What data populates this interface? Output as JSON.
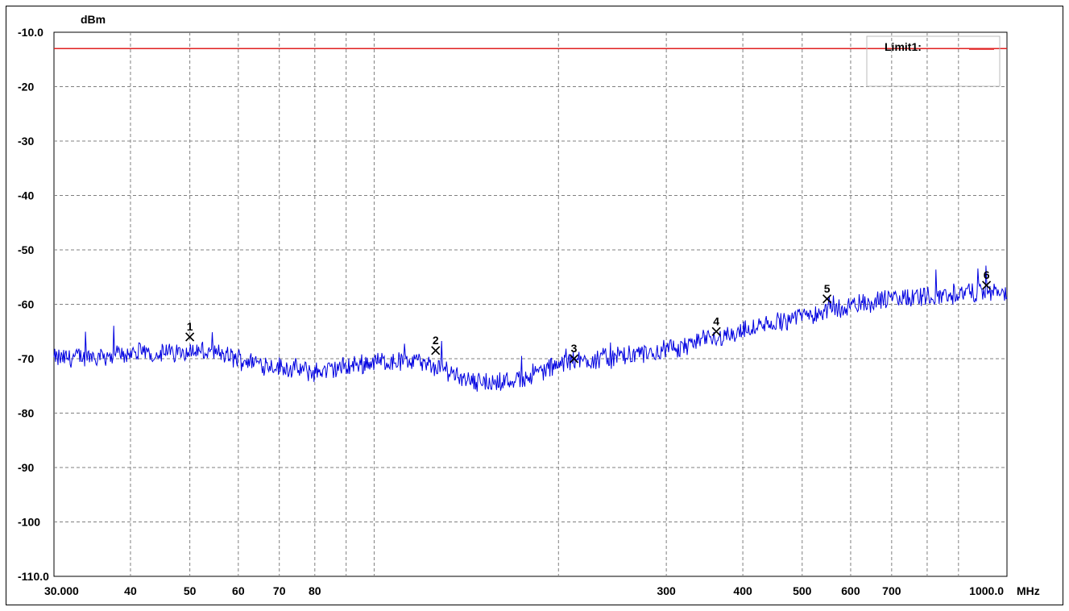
{
  "chart_data": {
    "type": "line",
    "title": "",
    "ylabel": "dBm",
    "xlabel": "MHz",
    "x_scale": "log",
    "xlim": [
      30,
      1000
    ],
    "ylim": [
      -110,
      -10
    ],
    "grid": true,
    "y_tick_labels": [
      "-10.0",
      "-20",
      "-30",
      "-40",
      "-50",
      "-60",
      "-70",
      "-80",
      "-90",
      "-100",
      "-110.0"
    ],
    "y_tick_values": [
      -10,
      -20,
      -30,
      -40,
      -50,
      -60,
      -70,
      -80,
      -90,
      -100,
      -110
    ],
    "x_tick_labels": [
      {
        "value": 30,
        "label": "30.000"
      },
      {
        "value": 40,
        "label": "40"
      },
      {
        "value": 50,
        "label": "50"
      },
      {
        "value": 60,
        "label": "60"
      },
      {
        "value": 70,
        "label": "70"
      },
      {
        "value": 80,
        "label": "80"
      },
      {
        "value": 300,
        "label": "300"
      },
      {
        "value": 400,
        "label": "400"
      },
      {
        "value": 500,
        "label": "500"
      },
      {
        "value": 600,
        "label": "600"
      },
      {
        "value": 700,
        "label": "700"
      },
      {
        "value": 1000,
        "label": "1000.0"
      }
    ],
    "x_grid_values": [
      40,
      50,
      60,
      70,
      80,
      90,
      100,
      200,
      300,
      400,
      500,
      600,
      700,
      800,
      900
    ],
    "limit_line": {
      "name": "Limit1:",
      "value": -13,
      "color": "#e02020"
    },
    "legend": {
      "entries": [
        "Limit1:"
      ],
      "position": "top-right"
    },
    "series": [
      {
        "color": "#0000e0",
        "x": [
          30,
          35,
          40,
          45,
          50,
          55,
          60,
          70,
          80,
          90,
          100,
          115,
          130,
          150,
          170,
          190,
          210,
          230,
          260,
          300,
          350,
          400,
          450,
          500,
          560,
          620,
          700,
          800,
          900,
          1000,
          1080
        ],
        "y": [
          -70,
          -69.5,
          -69,
          -69,
          -68.5,
          -69,
          -70,
          -71.5,
          -72.5,
          -71.5,
          -70.5,
          -70.5,
          -72,
          -74.5,
          -74,
          -72,
          -70.5,
          -70,
          -69.5,
          -68.5,
          -66.5,
          -65,
          -63.5,
          -62,
          -61,
          -60,
          -59,
          -58.5,
          -58,
          -57.5,
          -58
        ]
      }
    ],
    "markers": [
      {
        "label": "1",
        "x": 50,
        "y": -66
      },
      {
        "label": "2",
        "x": 126,
        "y": -68.5
      },
      {
        "label": "3",
        "x": 212,
        "y": -70
      },
      {
        "label": "4",
        "x": 362,
        "y": -65
      },
      {
        "label": "5",
        "x": 549,
        "y": -59
      },
      {
        "label": "6",
        "x": 1000,
        "y": -56.5
      }
    ]
  }
}
